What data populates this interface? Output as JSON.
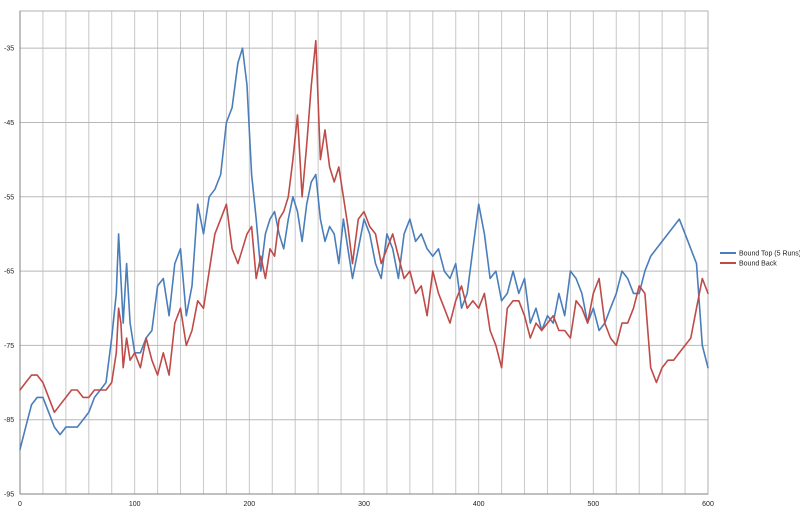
{
  "chart_data": {
    "type": "line",
    "title": "",
    "xlabel": "",
    "ylabel": "",
    "xlim": [
      0,
      600
    ],
    "ylim": [
      -95,
      -30
    ],
    "x_ticks": [
      0,
      100,
      200,
      300,
      400,
      500,
      600
    ],
    "y_ticks": [
      -35,
      -45,
      -55,
      -65,
      -75,
      -85,
      -95
    ],
    "grid": true,
    "legend_position": "right",
    "series": [
      {
        "name": "Bound Top (5 Runs)",
        "color": "#4a7ebb",
        "x": [
          0,
          5,
          10,
          15,
          20,
          25,
          30,
          35,
          40,
          45,
          50,
          55,
          60,
          65,
          70,
          75,
          80,
          84,
          86,
          88,
          90,
          93,
          96,
          100,
          105,
          110,
          115,
          120,
          125,
          130,
          135,
          140,
          145,
          150,
          155,
          160,
          165,
          170,
          175,
          180,
          185,
          190,
          194,
          198,
          202,
          206,
          210,
          214,
          218,
          222,
          226,
          230,
          234,
          238,
          242,
          246,
          250,
          254,
          258,
          262,
          266,
          270,
          274,
          278,
          282,
          286,
          290,
          295,
          300,
          305,
          310,
          315,
          320,
          325,
          330,
          335,
          340,
          345,
          350,
          355,
          360,
          365,
          370,
          375,
          380,
          385,
          390,
          395,
          400,
          405,
          410,
          415,
          420,
          425,
          430,
          435,
          440,
          445,
          450,
          455,
          460,
          465,
          470,
          475,
          480,
          485,
          490,
          495,
          500,
          505,
          510,
          515,
          520,
          525,
          530,
          535,
          540,
          545,
          550,
          555,
          560,
          565,
          570,
          575,
          580,
          585,
          590,
          595,
          600
        ],
        "values": [
          -89,
          -86,
          -83,
          -82,
          -82,
          -84,
          -86,
          -87,
          -86,
          -86,
          -86,
          -85,
          -84,
          -82,
          -81,
          -80,
          -74,
          -68,
          -60,
          -66,
          -72,
          -64,
          -72,
          -76,
          -76,
          -74,
          -73,
          -67,
          -66,
          -71,
          -64,
          -62,
          -71,
          -67,
          -56,
          -60,
          -55,
          -54,
          -52,
          -45,
          -43,
          -37,
          -35,
          -40,
          -52,
          -58,
          -65,
          -60,
          -58,
          -57,
          -60,
          -62,
          -58,
          -55,
          -57,
          -61,
          -56,
          -53,
          -52,
          -58,
          -61,
          -59,
          -60,
          -64,
          -58,
          -62,
          -66,
          -62,
          -58,
          -60,
          -64,
          -66,
          -60,
          -62,
          -66,
          -60,
          -58,
          -61,
          -60,
          -62,
          -63,
          -62,
          -65,
          -66,
          -64,
          -70,
          -68,
          -62,
          -56,
          -60,
          -66,
          -65,
          -69,
          -68,
          -65,
          -68,
          -66,
          -72,
          -70,
          -73,
          -71,
          -72,
          -68,
          -71,
          -65,
          -66,
          -68,
          -72,
          -70,
          -73,
          -72,
          -70,
          -68,
          -65,
          -66,
          -68,
          -68,
          -65,
          -63,
          -62,
          -61,
          -60,
          -59,
          -58,
          -60,
          -62,
          -64,
          -75,
          -78
        ]
      },
      {
        "name": "Bound Back",
        "color": "#be4b48",
        "x": [
          0,
          5,
          10,
          15,
          20,
          25,
          30,
          35,
          40,
          45,
          50,
          55,
          60,
          65,
          70,
          75,
          80,
          84,
          86,
          88,
          90,
          93,
          96,
          100,
          105,
          110,
          115,
          120,
          125,
          130,
          135,
          140,
          145,
          150,
          155,
          160,
          165,
          170,
          175,
          180,
          185,
          190,
          194,
          198,
          202,
          206,
          210,
          214,
          218,
          222,
          226,
          230,
          234,
          238,
          242,
          246,
          250,
          254,
          258,
          262,
          266,
          270,
          274,
          278,
          282,
          286,
          290,
          295,
          300,
          305,
          310,
          315,
          320,
          325,
          330,
          335,
          340,
          345,
          350,
          355,
          360,
          365,
          370,
          375,
          380,
          385,
          390,
          395,
          400,
          405,
          410,
          415,
          420,
          425,
          430,
          435,
          440,
          445,
          450,
          455,
          460,
          465,
          470,
          475,
          480,
          485,
          490,
          495,
          500,
          505,
          510,
          515,
          520,
          525,
          530,
          535,
          540,
          545,
          550,
          555,
          560,
          565,
          570,
          575,
          580,
          585,
          590,
          595,
          600
        ],
        "values": [
          -81,
          -80,
          -79,
          -79,
          -80,
          -82,
          -84,
          -83,
          -82,
          -81,
          -81,
          -82,
          -82,
          -81,
          -81,
          -81,
          -80,
          -76,
          -70,
          -72,
          -78,
          -74,
          -77,
          -76,
          -78,
          -74,
          -77,
          -79,
          -76,
          -79,
          -72,
          -70,
          -75,
          -73,
          -69,
          -70,
          -65,
          -60,
          -58,
          -56,
          -62,
          -64,
          -62,
          -60,
          -59,
          -66,
          -63,
          -66,
          -62,
          -63,
          -58,
          -57,
          -55,
          -50,
          -44,
          -55,
          -48,
          -40,
          -34,
          -50,
          -46,
          -51,
          -53,
          -51,
          -55,
          -59,
          -64,
          -58,
          -57,
          -59,
          -60,
          -64,
          -62,
          -60,
          -63,
          -66,
          -65,
          -68,
          -67,
          -71,
          -65,
          -68,
          -70,
          -72,
          -69,
          -67,
          -70,
          -69,
          -70,
          -68,
          -73,
          -75,
          -78,
          -70,
          -69,
          -69,
          -71,
          -74,
          -72,
          -73,
          -72,
          -71,
          -73,
          -73,
          -74,
          -69,
          -70,
          -72,
          -68,
          -66,
          -72,
          -74,
          -75,
          -72,
          -72,
          -70,
          -67,
          -68,
          -78,
          -80,
          -78,
          -77,
          -77,
          -76,
          -75,
          -74,
          -70,
          -66,
          -68
        ]
      }
    ]
  }
}
